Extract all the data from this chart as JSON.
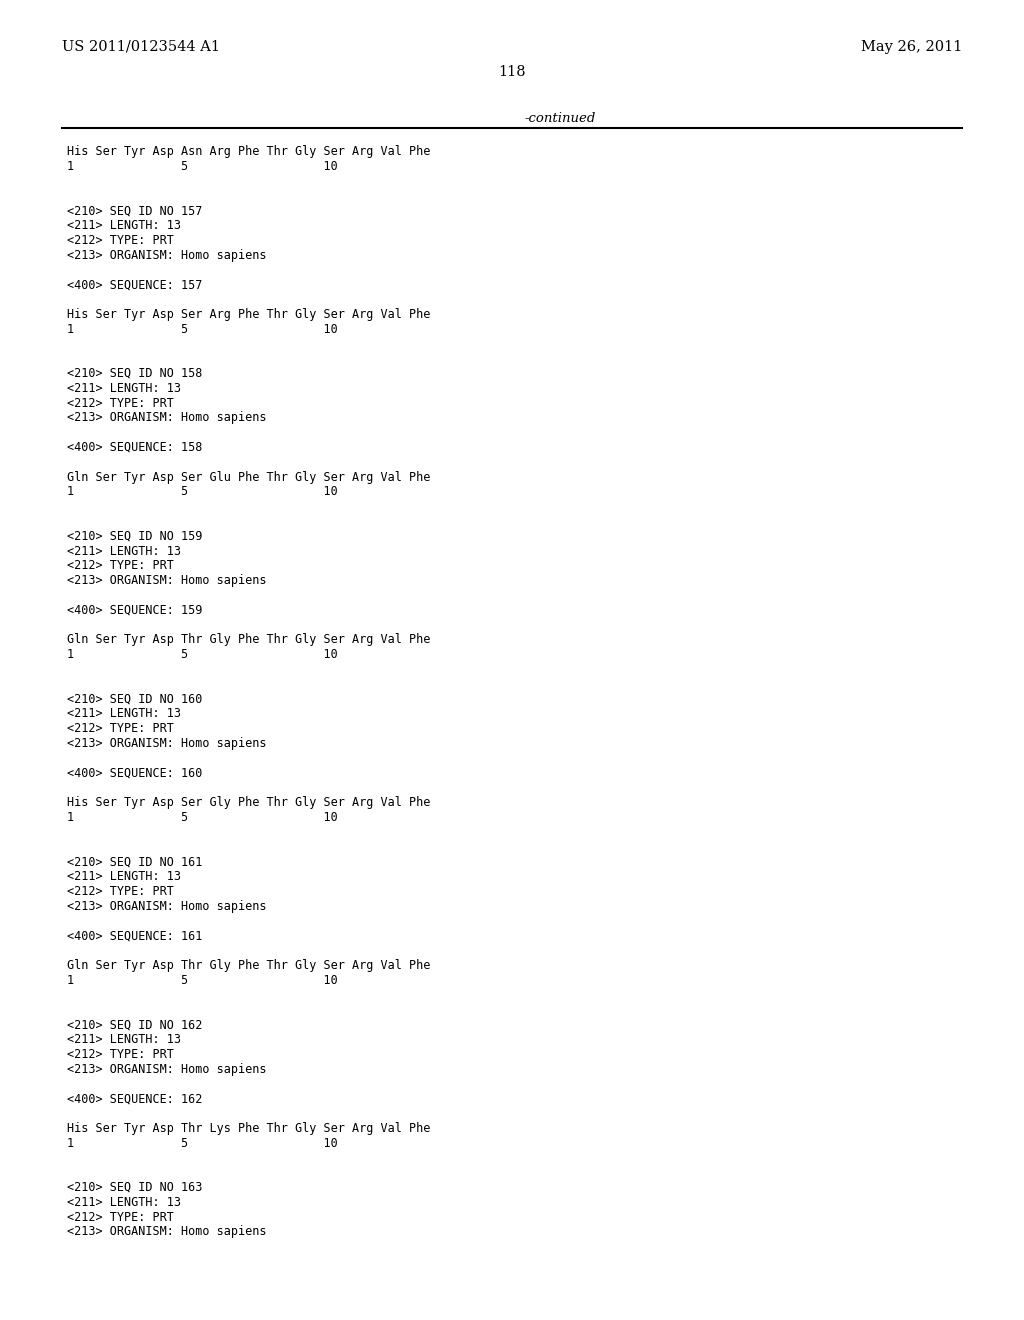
{
  "top_left": "US 2011/0123544 A1",
  "top_right": "May 26, 2011",
  "page_number": "118",
  "continued_label": "-continued",
  "background_color": "#ffffff",
  "text_color": "#000000",
  "font_size_header": 10.5,
  "font_size_body": 9.5,
  "monospace_font": "DejaVu Sans Mono",
  "serif_font": "serif",
  "lines": [
    "His Ser Tyr Asp Asn Arg Phe Thr Gly Ser Arg Val Phe",
    "1               5                   10",
    "",
    "",
    "<210> SEQ ID NO 157",
    "<211> LENGTH: 13",
    "<212> TYPE: PRT",
    "<213> ORGANISM: Homo sapiens",
    "",
    "<400> SEQUENCE: 157",
    "",
    "His Ser Tyr Asp Ser Arg Phe Thr Gly Ser Arg Val Phe",
    "1               5                   10",
    "",
    "",
    "<210> SEQ ID NO 158",
    "<211> LENGTH: 13",
    "<212> TYPE: PRT",
    "<213> ORGANISM: Homo sapiens",
    "",
    "<400> SEQUENCE: 158",
    "",
    "Gln Ser Tyr Asp Ser Glu Phe Thr Gly Ser Arg Val Phe",
    "1               5                   10",
    "",
    "",
    "<210> SEQ ID NO 159",
    "<211> LENGTH: 13",
    "<212> TYPE: PRT",
    "<213> ORGANISM: Homo sapiens",
    "",
    "<400> SEQUENCE: 159",
    "",
    "Gln Ser Tyr Asp Thr Gly Phe Thr Gly Ser Arg Val Phe",
    "1               5                   10",
    "",
    "",
    "<210> SEQ ID NO 160",
    "<211> LENGTH: 13",
    "<212> TYPE: PRT",
    "<213> ORGANISM: Homo sapiens",
    "",
    "<400> SEQUENCE: 160",
    "",
    "His Ser Tyr Asp Ser Gly Phe Thr Gly Ser Arg Val Phe",
    "1               5                   10",
    "",
    "",
    "<210> SEQ ID NO 161",
    "<211> LENGTH: 13",
    "<212> TYPE: PRT",
    "<213> ORGANISM: Homo sapiens",
    "",
    "<400> SEQUENCE: 161",
    "",
    "Gln Ser Tyr Asp Thr Gly Phe Thr Gly Ser Arg Val Phe",
    "1               5                   10",
    "",
    "",
    "<210> SEQ ID NO 162",
    "<211> LENGTH: 13",
    "<212> TYPE: PRT",
    "<213> ORGANISM: Homo sapiens",
    "",
    "<400> SEQUENCE: 162",
    "",
    "His Ser Tyr Asp Thr Lys Phe Thr Gly Ser Arg Val Phe",
    "1               5                   10",
    "",
    "",
    "<210> SEQ ID NO 163",
    "<211> LENGTH: 13",
    "<212> TYPE: PRT",
    "<213> ORGANISM: Homo sapiens"
  ]
}
